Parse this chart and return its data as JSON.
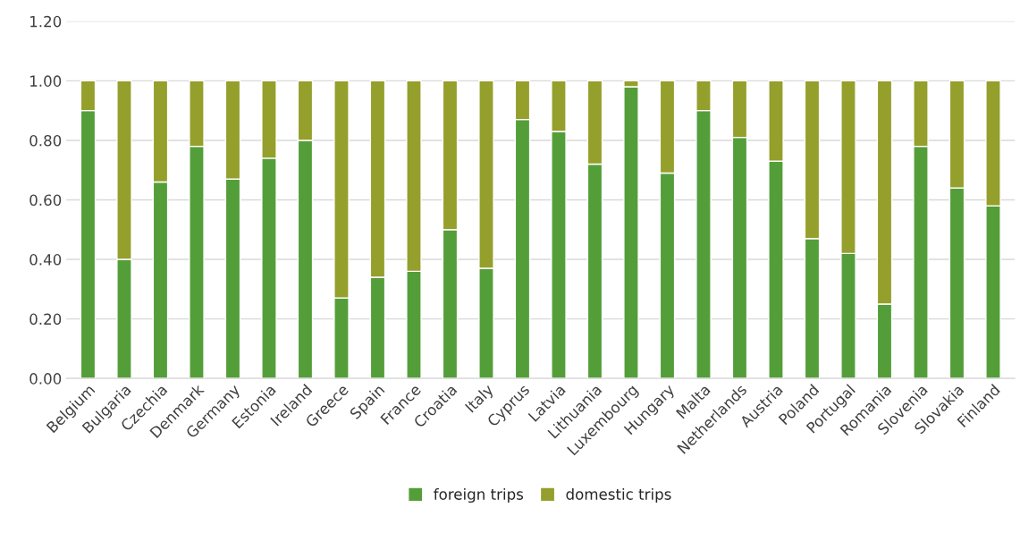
{
  "chart_data": {
    "type": "bar",
    "stacked": true,
    "categories": [
      "Belgium",
      "Bulgaria",
      "Czechia",
      "Denmark",
      "Germany",
      "Estonia",
      "Ireland",
      "Greece",
      "Spain",
      "France",
      "Croatia",
      "Italy",
      "Cyprus",
      "Latvia",
      "Lithuania",
      "Luxembourg",
      "Hungary",
      "Malta",
      "Netherlands",
      "Austria",
      "Poland",
      "Portugal",
      "Romania",
      "Slovenia",
      "Slovakia",
      "Finland"
    ],
    "series": [
      {
        "name": "foreign trips",
        "color": "#549e39",
        "values": [
          0.9,
          0.4,
          0.66,
          0.78,
          0.67,
          0.74,
          0.8,
          0.27,
          0.34,
          0.36,
          0.5,
          0.37,
          0.87,
          0.83,
          0.72,
          0.98,
          0.69,
          0.9,
          0.81,
          0.73,
          0.47,
          0.42,
          0.25,
          0.78,
          0.64,
          0.58
        ]
      },
      {
        "name": "domestic trips",
        "color": "#959f2b",
        "values": [
          0.1,
          0.6,
          0.34,
          0.22,
          0.33,
          0.26,
          0.2,
          0.73,
          0.66,
          0.64,
          0.5,
          0.63,
          0.13,
          0.17,
          0.28,
          0.02,
          0.31,
          0.1,
          0.19,
          0.27,
          0.53,
          0.58,
          0.75,
          0.22,
          0.36,
          0.42
        ]
      }
    ],
    "ylim": [
      0,
      1.2
    ],
    "yticks": [
      {
        "value": 0,
        "label": "0.00"
      },
      {
        "value": 0.2,
        "label": "0.20"
      },
      {
        "value": 0.4,
        "label": "0.40"
      },
      {
        "value": 0.6,
        "label": "0.60"
      },
      {
        "value": 0.8,
        "label": "0.80"
      },
      {
        "value": 1.0,
        "label": "1.00"
      },
      {
        "value": 1.2,
        "label": "1.20"
      }
    ],
    "grid": "y",
    "legend": "bottom"
  }
}
